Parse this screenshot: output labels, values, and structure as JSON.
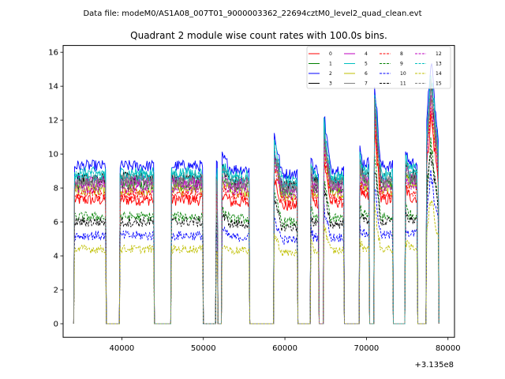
{
  "suptitle": "Data file: modeM0/AS1A08_007T01_9000003362_22694cztM0_level2_quad_clean.evt",
  "chart_data": {
    "type": "line",
    "title": "Quadrant 2 module wise count rates with 100.0s bins.",
    "xlabel": "",
    "ylabel": "",
    "x_offset_label": "+3.135e8",
    "xlim": [
      32800,
      80800
    ],
    "ylim": [
      -0.8,
      16.4
    ],
    "xticks": [
      40000,
      50000,
      60000,
      70000,
      80000
    ],
    "xtick_labels": [
      "40000",
      "50000",
      "60000",
      "70000",
      "80000"
    ],
    "yticks": [
      0,
      2,
      4,
      6,
      8,
      10,
      12,
      14,
      16
    ],
    "ytick_labels": [
      "0",
      "2",
      "4",
      "6",
      "8",
      "10",
      "12",
      "14",
      "16"
    ],
    "legend_position": "upper-right",
    "legend_columns": 4,
    "segments": [
      [
        34200,
        38000
      ],
      [
        39800,
        43900
      ],
      [
        46100,
        49900
      ],
      [
        51600,
        51700
      ],
      [
        52300,
        55600
      ],
      [
        58700,
        61500
      ],
      [
        63200,
        64100
      ],
      [
        64800,
        67200
      ],
      [
        69200,
        70300
      ],
      [
        71000,
        73200
      ],
      [
        74800,
        76200
      ],
      [
        77400,
        78800
      ]
    ],
    "segment_shapes": [
      {
        "start_factor": 1.0,
        "peak_factor": 1.0,
        "end_factor": 1.0
      },
      {
        "start_factor": 1.0,
        "peak_factor": 1.0,
        "end_factor": 1.0
      },
      {
        "start_factor": 1.0,
        "peak_factor": 1.0,
        "end_factor": 1.0
      },
      {
        "start_factor": 1.0,
        "peak_factor": 1.0,
        "end_factor": 1.0
      },
      {
        "start_factor": 1.06,
        "peak_factor": 1.06,
        "end_factor": 0.98
      },
      {
        "start_factor": 1.2,
        "peak_factor": 1.2,
        "end_factor": 0.95
      },
      {
        "start_factor": 1.08,
        "peak_factor": 1.08,
        "end_factor": 0.98
      },
      {
        "start_factor": 1.32,
        "peak_factor": 1.32,
        "end_factor": 0.98
      },
      {
        "start_factor": 1.1,
        "peak_factor": 1.1,
        "end_factor": 1.02
      },
      {
        "start_factor": 1.55,
        "peak_factor": 1.55,
        "end_factor": 1.0
      },
      {
        "start_factor": 1.1,
        "peak_factor": 1.1,
        "end_factor": 1.02
      },
      {
        "start_factor": 1.25,
        "peak_factor": 1.68,
        "end_factor": 1.15
      }
    ],
    "series": [
      {
        "name": "0",
        "color": "#ff0000",
        "style": "solid",
        "base": 7.3,
        "noise": 0.35
      },
      {
        "name": "1",
        "color": "#008000",
        "style": "solid",
        "base": 8.2,
        "noise": 0.35
      },
      {
        "name": "2",
        "color": "#0000ff",
        "style": "solid",
        "base": 9.3,
        "noise": 0.35
      },
      {
        "name": "3",
        "color": "#000000",
        "style": "solid",
        "base": 8.6,
        "noise": 0.35
      },
      {
        "name": "4",
        "color": "#bf00bf",
        "style": "solid",
        "base": 8.4,
        "noise": 0.35
      },
      {
        "name": "5",
        "color": "#00bfbf",
        "style": "solid",
        "base": 8.9,
        "noise": 0.35
      },
      {
        "name": "6",
        "color": "#bfbf00",
        "style": "solid",
        "base": 7.9,
        "noise": 0.35
      },
      {
        "name": "7",
        "color": "#808080",
        "style": "solid",
        "base": 8.5,
        "noise": 0.35
      },
      {
        "name": "8",
        "color": "#ff0000",
        "style": "dashed",
        "base": 7.6,
        "noise": 0.3
      },
      {
        "name": "9",
        "color": "#008000",
        "style": "dashed",
        "base": 6.3,
        "noise": 0.3
      },
      {
        "name": "10",
        "color": "#0000ff",
        "style": "dashed",
        "base": 5.2,
        "noise": 0.28
      },
      {
        "name": "11",
        "color": "#000000",
        "style": "dashed",
        "base": 6.0,
        "noise": 0.3
      },
      {
        "name": "12",
        "color": "#bf00bf",
        "style": "dashed",
        "base": 8.0,
        "noise": 0.32
      },
      {
        "name": "13",
        "color": "#00bfbf",
        "style": "dashed",
        "base": 8.7,
        "noise": 0.32
      },
      {
        "name": "14",
        "color": "#bfbf00",
        "style": "dashed",
        "base": 4.4,
        "noise": 0.25
      },
      {
        "name": "15",
        "color": "#808080",
        "style": "dashed",
        "base": 8.3,
        "noise": 0.32
      }
    ]
  }
}
